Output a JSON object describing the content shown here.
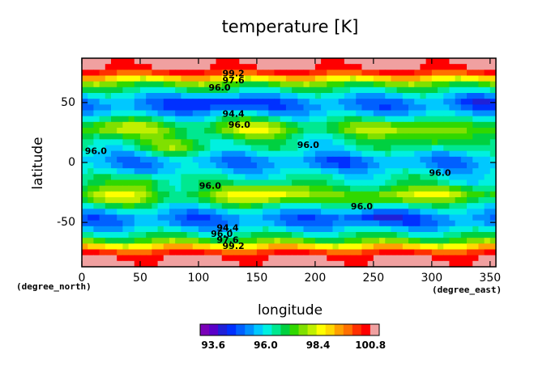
{
  "chart_data": {
    "type": "heatmap",
    "title": "temperature [K]",
    "xlabel": "longitude",
    "ylabel": "latitude",
    "x_units": "(degree_east)",
    "y_units": "(degree_north)",
    "xlim": [
      0,
      355
    ],
    "ylim": [
      -87,
      87
    ],
    "x_ticks": [
      "0",
      "50",
      "100",
      "150",
      "200",
      "250",
      "300",
      "350"
    ],
    "y_ticks": [
      "50",
      "0",
      "-50"
    ],
    "colorbar": {
      "ticks": [
        "93.6",
        "96.0",
        "98.4",
        "100.8"
      ],
      "range": [
        93.0,
        101.2
      ],
      "colors": [
        "#7a00b8",
        "#5a00c8",
        "#2020d8",
        "#0030ff",
        "#0060ff",
        "#0090ff",
        "#00c8ff",
        "#00f0e0",
        "#00e890",
        "#00d040",
        "#30d800",
        "#80e000",
        "#c0f000",
        "#ffff00",
        "#ffd800",
        "#ffa000",
        "#ff7000",
        "#ff3000",
        "#ff0000",
        "#f0a0a0"
      ]
    },
    "contour_labels": [
      {
        "lon": 130,
        "lat": 74,
        "text": "99.2"
      },
      {
        "lon": 130,
        "lat": 68,
        "text": "97.6"
      },
      {
        "lon": 118,
        "lat": 62,
        "text": "96.0"
      },
      {
        "lon": 130,
        "lat": 40,
        "text": "94.4"
      },
      {
        "lon": 135,
        "lat": 31,
        "text": "96.0"
      },
      {
        "lon": 12,
        "lat": 9,
        "text": "96.0"
      },
      {
        "lon": 194,
        "lat": 14,
        "text": "96.0"
      },
      {
        "lon": 307,
        "lat": -9,
        "text": "96.0"
      },
      {
        "lon": 110,
        "lat": -20,
        "text": "96.0"
      },
      {
        "lon": 240,
        "lat": -37,
        "text": "96.0"
      },
      {
        "lon": 125,
        "lat": -55,
        "text": "94.4"
      },
      {
        "lon": 120,
        "lat": -60,
        "text": "96.0"
      },
      {
        "lon": 125,
        "lat": -65,
        "text": "97.6"
      },
      {
        "lon": 130,
        "lat": -70,
        "text": "99.2"
      }
    ]
  }
}
